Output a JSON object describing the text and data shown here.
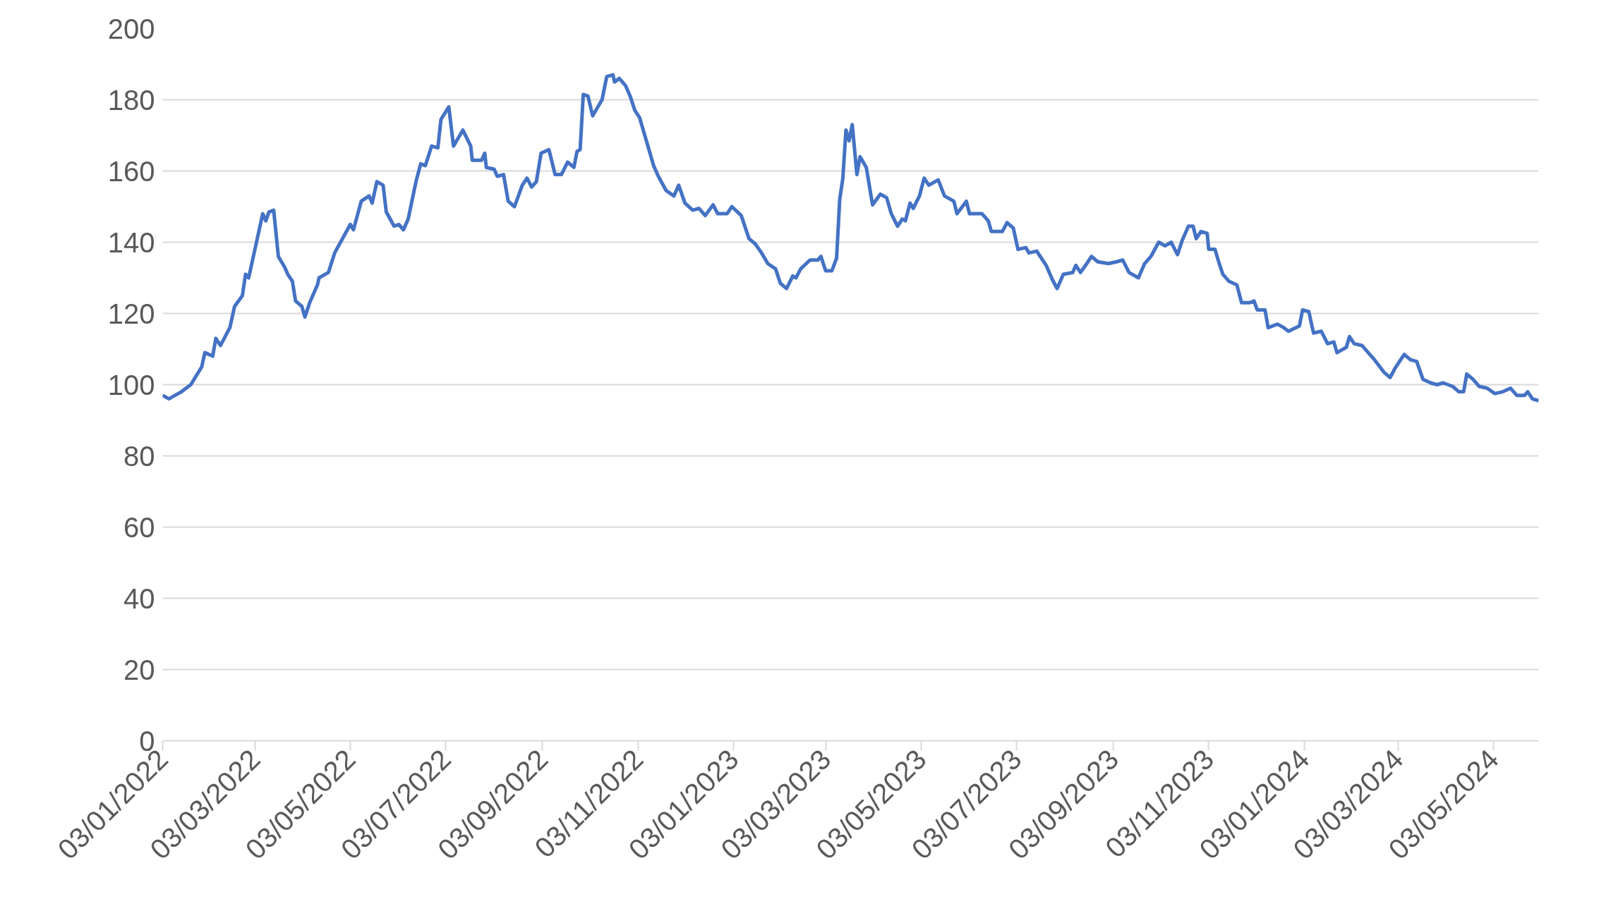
{
  "chart_data": {
    "type": "line",
    "x": [
      "2022-01-03",
      "2022-01-07",
      "2022-01-15",
      "2022-01-21",
      "2022-01-28",
      "2022-01-30",
      "2022-02-04",
      "2022-02-06",
      "2022-02-09",
      "2022-02-15",
      "2022-02-18",
      "2022-02-23",
      "2022-02-25",
      "2022-02-27",
      "2022-03-02",
      "2022-03-08",
      "2022-03-10",
      "2022-03-12",
      "2022-03-15",
      "2022-03-18",
      "2022-03-22",
      "2022-03-24",
      "2022-03-27",
      "2022-03-29",
      "2022-04-02",
      "2022-04-04",
      "2022-04-07",
      "2022-04-12",
      "2022-04-13",
      "2022-04-19",
      "2022-04-23",
      "2022-04-28",
      "2022-05-03",
      "2022-05-05",
      "2022-05-10",
      "2022-05-15",
      "2022-05-17",
      "2022-05-20",
      "2022-05-24",
      "2022-05-26",
      "2022-05-31",
      "2022-06-03",
      "2022-06-06",
      "2022-06-09",
      "2022-06-14",
      "2022-06-17",
      "2022-06-20",
      "2022-06-24",
      "2022-06-28",
      "2022-06-30",
      "2022-07-05",
      "2022-07-08",
      "2022-07-14",
      "2022-07-19",
      "2022-07-20",
      "2022-07-26",
      "2022-07-28",
      "2022-07-29",
      "2022-08-03",
      "2022-08-05",
      "2022-08-09",
      "2022-08-12",
      "2022-08-16",
      "2022-08-21",
      "2022-08-24",
      "2022-08-27",
      "2022-08-30",
      "2022-09-02",
      "2022-09-07",
      "2022-09-11",
      "2022-09-15",
      "2022-09-19",
      "2022-09-23",
      "2022-09-25",
      "2022-09-27",
      "2022-09-29",
      "2022-10-02",
      "2022-10-05",
      "2022-10-11",
      "2022-10-14",
      "2022-10-18",
      "2022-10-19",
      "2022-10-22",
      "2022-10-26",
      "2022-10-29",
      "2022-11-01",
      "2022-11-04",
      "2022-11-08",
      "2022-11-13",
      "2022-11-16",
      "2022-11-21",
      "2022-11-26",
      "2022-11-29",
      "2022-12-03",
      "2022-12-08",
      "2022-12-12",
      "2022-12-16",
      "2022-12-21",
      "2022-12-24",
      "2022-12-30",
      "2023-01-02",
      "2023-01-08",
      "2023-01-13",
      "2023-01-17",
      "2023-01-21",
      "2023-01-25",
      "2023-01-30",
      "2023-02-02",
      "2023-02-06",
      "2023-02-10",
      "2023-02-12",
      "2023-02-15",
      "2023-02-21",
      "2023-02-26",
      "2023-02-28",
      "2023-03-03",
      "2023-03-07",
      "2023-03-10",
      "2023-03-12",
      "2023-03-14",
      "2023-03-16",
      "2023-03-18",
      "2023-03-20",
      "2023-03-23",
      "2023-03-25",
      "2023-03-29",
      "2023-04-02",
      "2023-04-07",
      "2023-04-11",
      "2023-04-14",
      "2023-04-18",
      "2023-04-21",
      "2023-04-23",
      "2023-04-26",
      "2023-04-28",
      "2023-05-02",
      "2023-05-05",
      "2023-05-08",
      "2023-05-14",
      "2023-05-18",
      "2023-05-24",
      "2023-05-26",
      "2023-06-01",
      "2023-06-03",
      "2023-06-11",
      "2023-06-15",
      "2023-06-17",
      "2023-06-24",
      "2023-06-27",
      "2023-07-01",
      "2023-07-04",
      "2023-07-09",
      "2023-07-11",
      "2023-07-16",
      "2023-07-22",
      "2023-07-26",
      "2023-07-29",
      "2023-08-02",
      "2023-08-08",
      "2023-08-10",
      "2023-08-13",
      "2023-08-17",
      "2023-08-20",
      "2023-08-24",
      "2023-08-31",
      "2023-09-05",
      "2023-09-09",
      "2023-09-13",
      "2023-09-19",
      "2023-09-23",
      "2023-09-27",
      "2023-10-02",
      "2023-10-06",
      "2023-10-10",
      "2023-10-14",
      "2023-10-17",
      "2023-10-21",
      "2023-10-24",
      "2023-10-26",
      "2023-10-29",
      "2023-11-02",
      "2023-11-03",
      "2023-11-07",
      "2023-11-09",
      "2023-11-12",
      "2023-11-16",
      "2023-11-21",
      "2023-11-24",
      "2023-11-29",
      "2023-12-02",
      "2023-12-04",
      "2023-12-09",
      "2023-12-11",
      "2023-12-17",
      "2023-12-21",
      "2023-12-24",
      "2023-12-31",
      "2024-01-02",
      "2024-01-06",
      "2024-01-09",
      "2024-01-14",
      "2024-01-18",
      "2024-01-22",
      "2024-01-24",
      "2024-01-30",
      "2024-02-01",
      "2024-02-04",
      "2024-02-09",
      "2024-02-12",
      "2024-02-17",
      "2024-02-23",
      "2024-02-27",
      "2024-03-01",
      "2024-03-04",
      "2024-03-07",
      "2024-03-11",
      "2024-03-15",
      "2024-03-19",
      "2024-03-24",
      "2024-03-28",
      "2024-04-01",
      "2024-04-07",
      "2024-04-11",
      "2024-04-14",
      "2024-04-16",
      "2024-04-20",
      "2024-04-24",
      "2024-04-29",
      "2024-05-04",
      "2024-05-09",
      "2024-05-14",
      "2024-05-18",
      "2024-05-23",
      "2024-05-25",
      "2024-05-28",
      "2024-06-01"
    ],
    "series": [
      {
        "color": "#4472c4",
        "values": [
          97,
          96,
          98,
          100,
          105,
          109,
          108,
          113,
          111,
          116,
          122,
          125,
          131,
          130,
          136,
          148,
          146,
          148.5,
          149,
          136,
          133,
          131,
          129,
          123.5,
          122,
          119,
          123,
          128,
          130,
          131.5,
          137,
          141,
          145,
          143.5,
          151.5,
          153,
          151,
          157,
          156,
          148.5,
          144.5,
          145,
          143.5,
          146.5,
          157,
          162,
          161.5,
          167,
          166.5,
          174.5,
          178,
          167,
          171.5,
          167,
          163,
          163,
          165,
          161,
          160.5,
          158.5,
          159,
          151.5,
          150,
          156,
          158,
          155.5,
          157,
          165,
          166,
          159,
          159,
          162.5,
          161,
          165.5,
          166,
          181.5,
          181,
          175.5,
          180,
          186.5,
          187,
          185,
          186,
          184,
          181,
          177,
          175,
          169,
          161.5,
          158.5,
          154.5,
          153,
          156,
          151,
          149,
          149.5,
          147.5,
          150.5,
          148,
          148,
          150,
          147.5,
          141,
          139.5,
          137,
          134,
          132.5,
          128.5,
          127,
          130.5,
          130,
          132.5,
          135,
          135,
          136,
          132,
          132,
          135.5,
          152,
          158,
          171.5,
          168.5,
          173,
          159,
          164,
          161,
          150.5,
          153.5,
          152.5,
          148,
          144.5,
          146.5,
          146,
          151,
          149.5,
          153,
          158,
          156,
          157.5,
          153,
          151.5,
          148,
          151.5,
          148,
          148,
          146,
          143,
          143,
          145.5,
          144,
          138,
          138.5,
          137,
          137.5,
          133.5,
          129.5,
          127,
          131,
          131.5,
          133.5,
          131.5,
          134,
          136,
          134.5,
          134,
          134.5,
          135,
          131.5,
          130,
          134,
          136,
          140,
          139,
          140,
          136.5,
          140.5,
          144.5,
          144.5,
          141,
          143,
          142.5,
          138,
          138,
          135,
          131,
          129,
          128,
          123,
          123,
          123.5,
          121,
          121,
          116,
          117,
          116,
          115,
          116.5,
          121,
          120.5,
          114.5,
          115,
          111.5,
          112,
          109,
          110.5,
          113.5,
          111.5,
          111,
          109.5,
          107,
          103.5,
          102,
          104.5,
          106.5,
          108.5,
          107,
          106.5,
          101.5,
          100.5,
          100,
          100.5,
          99.5,
          98,
          98,
          103,
          101.5,
          99.5,
          99,
          97.5,
          98,
          99,
          97,
          97,
          98,
          96,
          95.5
        ]
      }
    ],
    "xlim": [
      "2022-01-03",
      "2024-06-01"
    ],
    "xticks": [
      {
        "value": "2022-01-03",
        "label": "03/01/2022"
      },
      {
        "value": "2022-03-03",
        "label": "03/03/2022"
      },
      {
        "value": "2022-05-03",
        "label": "03/05/2022"
      },
      {
        "value": "2022-07-03",
        "label": "03/07/2022"
      },
      {
        "value": "2022-09-03",
        "label": "03/09/2022"
      },
      {
        "value": "2022-11-03",
        "label": "03/11/2022"
      },
      {
        "value": "2023-01-03",
        "label": "03/01/2023"
      },
      {
        "value": "2023-03-03",
        "label": "03/03/2023"
      },
      {
        "value": "2023-05-03",
        "label": "03/05/2023"
      },
      {
        "value": "2023-07-03",
        "label": "03/07/2023"
      },
      {
        "value": "2023-09-03",
        "label": "03/09/2023"
      },
      {
        "value": "2023-11-03",
        "label": "03/11/2023"
      },
      {
        "value": "2024-01-03",
        "label": "03/01/2024"
      },
      {
        "value": "2024-03-03",
        "label": "03/03/2024"
      },
      {
        "value": "2024-05-03",
        "label": "03/05/2024"
      }
    ],
    "ylim": [
      0,
      200
    ],
    "yticks": [
      0,
      20,
      40,
      60,
      80,
      100,
      120,
      140,
      160,
      180,
      200
    ],
    "grid": "y",
    "marker": "none",
    "line_style": "solid"
  }
}
